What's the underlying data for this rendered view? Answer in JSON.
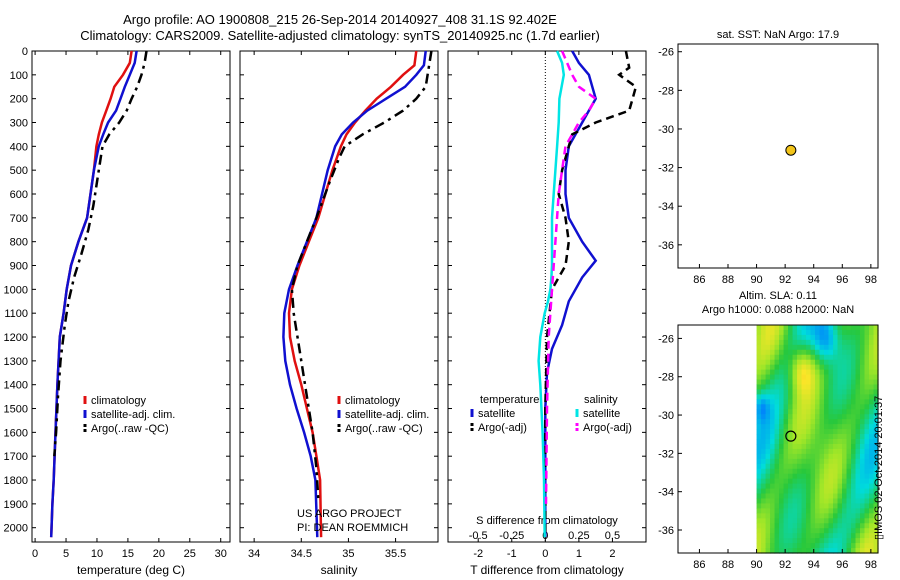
{
  "header": {
    "line1": "Argo profile: AO 1900808_215 26-Sep-2014 20140927_408 31.1S 92.402E",
    "line2": "Climatology: CARS2009. Satellite-adjusted climatology: synTS_20140925.nc (1.7d earlier)"
  },
  "colors": {
    "climatology": "#e01010",
    "satellite": "#1010d0",
    "argo": "#000000",
    "salinity_satellite": "#00e5e5",
    "salinity_argo": "#ff00ff"
  },
  "chart_data": [
    {
      "id": "temperature",
      "type": "line",
      "xlabel": "temperature (deg C)",
      "ylabel": "",
      "xlim": [
        -0.5,
        31.5
      ],
      "ylim": [
        2060,
        0
      ],
      "xticks": [
        0,
        5,
        10,
        15,
        20,
        25,
        30
      ],
      "yticks": [
        0,
        100,
        200,
        300,
        400,
        500,
        600,
        700,
        800,
        900,
        1000,
        1100,
        1200,
        1300,
        1400,
        1500,
        1600,
        1700,
        1800,
        1900,
        2000
      ],
      "legend": {
        "placement": "bottom-left",
        "entries": [
          "climatology",
          "satellite-adj. clim.",
          "Argo(..raw -QC)"
        ]
      },
      "series": [
        {
          "name": "climatology",
          "x": [
            15.6,
            15.3,
            14.2,
            12.8,
            12.2,
            11.5,
            10.8,
            10.3,
            9.9,
            9.5,
            8.4,
            7.0,
            5.8,
            5.1,
            4.6,
            4.0,
            3.6,
            3.3,
            3.0,
            2.8,
            2.6
          ],
          "y": [
            0,
            50,
            100,
            150,
            200,
            250,
            300,
            350,
            400,
            500,
            700,
            800,
            900,
            1000,
            1100,
            1200,
            1400,
            1600,
            1800,
            1900,
            2040
          ]
        },
        {
          "name": "satellite-adj. clim.",
          "x": [
            16.4,
            16.1,
            15.3,
            14.5,
            13.8,
            13.1,
            11.8,
            11.0,
            10.3,
            9.5,
            8.4,
            7.0,
            5.8,
            5.1,
            4.6,
            4.0,
            3.6,
            3.3,
            3.0,
            2.8,
            2.6
          ],
          "y": [
            0,
            50,
            100,
            150,
            200,
            250,
            300,
            350,
            400,
            500,
            700,
            800,
            900,
            1000,
            1100,
            1200,
            1400,
            1600,
            1800,
            1900,
            2040
          ]
        },
        {
          "name": "Argo(..raw -QC)",
          "x": [
            18.0,
            17.7,
            17.2,
            16.5,
            15.6,
            14.8,
            13.6,
            12.0,
            10.9,
            10.3,
            9.4,
            8.6,
            7.5,
            6.3,
            5.4,
            4.8,
            4.1,
            3.7,
            3.4,
            3.1
          ],
          "y": [
            0,
            50,
            100,
            150,
            200,
            250,
            300,
            350,
            400,
            500,
            650,
            750,
            850,
            950,
            1050,
            1150,
            1300,
            1450,
            1600,
            1700
          ]
        }
      ]
    },
    {
      "id": "salinity",
      "type": "line",
      "xlabel": "salinity",
      "ylabel": "",
      "xlim": [
        33.85,
        35.95
      ],
      "ylim": [
        2060,
        0
      ],
      "xticks": [
        34,
        34.5,
        35,
        35.5
      ],
      "legend": {
        "placement": "bottom-left",
        "entries": [
          "climatology",
          "satellite-adj. clim.",
          "Argo(..raw -QC)"
        ]
      },
      "series": [
        {
          "name": "climatology",
          "x": [
            35.72,
            35.7,
            35.58,
            35.45,
            35.3,
            35.18,
            35.07,
            34.98,
            34.92,
            34.83,
            34.68,
            34.58,
            34.48,
            34.4,
            34.37,
            34.38,
            34.43,
            34.5,
            34.56,
            34.62,
            34.66,
            34.7,
            34.71
          ],
          "y": [
            0,
            60,
            100,
            150,
            200,
            250,
            300,
            350,
            400,
            500,
            700,
            800,
            900,
            1000,
            1100,
            1200,
            1300,
            1400,
            1500,
            1600,
            1700,
            1800,
            2040
          ]
        },
        {
          "name": "satellite-adj. clim.",
          "x": [
            35.82,
            35.8,
            35.72,
            35.6,
            35.4,
            35.2,
            35.05,
            34.93,
            34.86,
            34.78,
            34.66,
            34.56,
            34.46,
            34.37,
            34.32,
            34.31,
            34.33,
            34.38,
            34.45,
            34.53,
            34.6,
            34.65,
            34.67
          ],
          "y": [
            0,
            60,
            100,
            150,
            200,
            250,
            300,
            350,
            400,
            500,
            700,
            800,
            900,
            1000,
            1100,
            1200,
            1300,
            1400,
            1500,
            1600,
            1700,
            1800,
            2040
          ]
        },
        {
          "name": "Argo(..raw -QC)",
          "x": [
            35.88,
            35.86,
            35.84,
            35.82,
            35.72,
            35.58,
            35.38,
            35.15,
            34.96,
            34.9,
            34.8,
            34.66,
            34.56,
            34.46,
            34.4,
            34.42,
            34.48,
            34.56,
            34.62,
            34.66,
            34.68
          ],
          "y": [
            0,
            50,
            100,
            150,
            200,
            250,
            300,
            350,
            400,
            450,
            550,
            700,
            800,
            900,
            1000,
            1100,
            1250,
            1450,
            1600,
            1750,
            1880
          ]
        }
      ]
    },
    {
      "id": "difference",
      "type": "line",
      "xlabel": "T difference from climatology",
      "ylabel": "",
      "xlim": [
        -2.9,
        3.0
      ],
      "ylim": [
        2060,
        0
      ],
      "xticks": [
        -2,
        -1,
        0,
        1,
        2
      ],
      "top_axis": {
        "label": "S difference from climatology",
        "ticks": [
          "-0.5",
          "-0.25",
          "0",
          "0.25",
          "0.5"
        ]
      },
      "legend": {
        "placement": "bottom",
        "title_left": "temperature",
        "title_right": "salinity",
        "entries": [
          "satellite",
          "Argo(-adj)",
          "satellite",
          "Argo(-adj)"
        ]
      },
      "series": [
        {
          "name": "temperature satellite",
          "x": [
            0.8,
            1.0,
            1.3,
            1.4,
            1.5,
            1.3,
            1.1,
            0.9,
            0.7,
            0.6,
            0.6,
            0.7,
            1.1,
            1.5,
            1.1,
            0.7,
            0.5,
            0.2,
            0.05,
            0.0,
            0.0,
            0.0
          ],
          "y": [
            0,
            50,
            100,
            150,
            200,
            250,
            300,
            350,
            400,
            500,
            600,
            700,
            800,
            880,
            950,
            1050,
            1150,
            1250,
            1350,
            1500,
            1800,
            2040
          ]
        },
        {
          "name": "temperature Argo(-adj)",
          "x": [
            2.4,
            2.5,
            2.2,
            2.7,
            2.6,
            2.5,
            1.5,
            0.8,
            0.7,
            0.5,
            0.4,
            0.6,
            0.7,
            0.6,
            0.2,
            0.05,
            0.0,
            0.0
          ],
          "y": [
            0,
            70,
            100,
            150,
            200,
            250,
            300,
            350,
            400,
            500,
            600,
            700,
            800,
            900,
            1000,
            1200,
            1500,
            2040
          ]
        },
        {
          "name": "salinity satellite",
          "x": [
            0.35,
            0.5,
            0.55,
            0.42,
            0.4,
            0.35,
            0.3,
            0.25,
            0.2,
            0.2,
            0.2,
            0.18,
            0.15,
            0.08,
            -0.02,
            -0.15,
            -0.2,
            -0.15,
            -0.08,
            -0.04,
            -0.02
          ],
          "y": [
            0,
            50,
            100,
            200,
            300,
            400,
            500,
            600,
            700,
            800,
            900,
            950,
            1000,
            1050,
            1100,
            1200,
            1300,
            1400,
            1600,
            1800,
            2040
          ]
        },
        {
          "name": "salinity Argo(-adj)",
          "x": [
            0.5,
            0.8,
            1.0,
            1.5,
            1.3,
            1.0,
            0.6,
            0.4,
            0.3,
            0.2,
            0.1,
            0.05,
            0.02
          ],
          "y": [
            0,
            100,
            150,
            200,
            250,
            300,
            400,
            600,
            800,
            1000,
            1200,
            1500,
            1900
          ]
        }
      ]
    },
    {
      "id": "sst-map",
      "type": "scatter",
      "title": "sat. SST: NaN Argo: 17.9",
      "xlim": [
        84.5,
        98.5
      ],
      "ylim": [
        -37.2,
        -25.6
      ],
      "xticks": [
        86,
        88,
        90,
        92,
        94,
        96,
        98
      ],
      "yticks": [
        -26,
        -28,
        -30,
        -32,
        -34,
        -36
      ],
      "points": [
        {
          "x": 92.4,
          "y": -31.1
        }
      ]
    },
    {
      "id": "sla-map",
      "type": "heatmap",
      "title_line1": "Altim. SLA: 0.11",
      "title_line2": "Argo h1000: 0.088 h2000: NaN",
      "xlim": [
        84.5,
        98.5
      ],
      "ylim": [
        -37.2,
        -25.3
      ],
      "xticks": [
        86,
        88,
        90,
        92,
        94,
        96,
        98
      ],
      "yticks": [
        -26,
        -28,
        -30,
        -32,
        -34,
        -36
      ],
      "points": [
        {
          "x": 92.4,
          "y": -31.1
        }
      ]
    }
  ],
  "annotations": {
    "project_line1": "US ARGO PROJECT",
    "project_line2": "PI: DEAN ROEMMICH",
    "stamp": "IMOS 02-Oct-2014 20:01:37"
  }
}
